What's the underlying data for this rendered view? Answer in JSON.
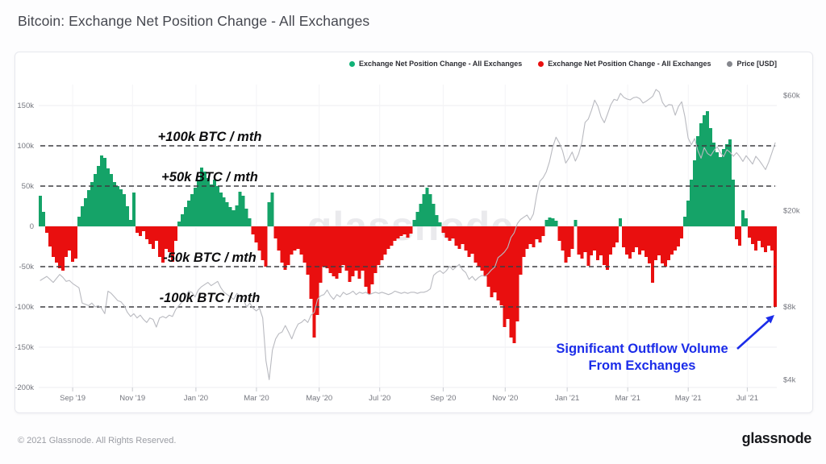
{
  "header": {
    "title": "Bitcoin: Exchange Net Position Change - All Exchanges"
  },
  "legend": {
    "items": [
      {
        "label": "Exchange Net Position Change - All Exchanges",
        "color": "#10b277"
      },
      {
        "label": "Exchange Net Position Change - All Exchanges",
        "color": "#e90f0f"
      },
      {
        "label": "Price [USD]",
        "color": "#85878d"
      }
    ]
  },
  "watermark": "glassnode",
  "footer": {
    "copyright": "© 2021 Glassnode. All Rights Reserved.",
    "logo_text": "glassnode"
  },
  "annotations": {
    "threshold_lines": [
      {
        "label": "+100k BTC / mth",
        "value_k": 100
      },
      {
        "label": "+50k BTC / mth",
        "value_k": 50
      },
      {
        "label": "-50k BTC / mth",
        "value_k": -50
      },
      {
        "label": "-100k BTC / mth",
        "value_k": -100
      }
    ],
    "callout": {
      "line1": "Significant Outflow Volume",
      "line2": "From Exchanges",
      "color": "#1b2ce9"
    }
  },
  "chart_data": {
    "type": "bar",
    "title": "Bitcoin: Exchange Net Position Change - All Exchanges",
    "x_axis": {
      "ticks": [
        "Sep '19",
        "Nov '19",
        "Jan '20",
        "Mar '20",
        "May '20",
        "Jul '20",
        "Sep '20",
        "Nov '20",
        "Jan '21",
        "Mar '21",
        "May '21",
        "Jul '21"
      ],
      "tick_positions": [
        0.046,
        0.127,
        0.213,
        0.295,
        0.38,
        0.462,
        0.548,
        0.632,
        0.716,
        0.798,
        0.88,
        0.96
      ],
      "domain": "Aug 2019 - Aug 2021, uniform time samples"
    },
    "left_axis": {
      "unit": "BTC per month (thousands)",
      "ticks": [
        "150k",
        "100k",
        "50k",
        "0",
        "-50k",
        "-100k",
        "-150k",
        "-200k"
      ],
      "tick_values_k": [
        150,
        100,
        50,
        0,
        -50,
        -100,
        -150,
        -200
      ],
      "range_k": [
        -200,
        175
      ],
      "grid": true
    },
    "right_axis": {
      "label": "Price [USD]",
      "scale": "log",
      "ticks": [
        "$60k",
        "$20k",
        "$8k",
        "$4k"
      ],
      "tick_values_kusd": [
        60,
        20,
        8,
        4
      ]
    },
    "series": [
      {
        "name": "Exchange Net Position Change - All Exchanges",
        "type": "bar",
        "unit": "k BTC / month",
        "color_positive": "#15a368",
        "color_negative": "#e90f0f",
        "values_k": [
          38,
          18,
          -8,
          -25,
          -38,
          -45,
          -52,
          -55,
          -38,
          -30,
          -44,
          -40,
          12,
          25,
          35,
          45,
          55,
          65,
          75,
          88,
          85,
          72,
          65,
          55,
          50,
          46,
          40,
          25,
          8,
          42,
          -8,
          -12,
          -6,
          -16,
          -22,
          -28,
          -18,
          -38,
          -45,
          -28,
          -32,
          -44,
          -18,
          6,
          15,
          24,
          32,
          40,
          48,
          58,
          73,
          68,
          60,
          52,
          58,
          50,
          42,
          36,
          30,
          24,
          20,
          26,
          43,
          38,
          22,
          10,
          -10,
          -20,
          -30,
          -42,
          -50,
          30,
          42,
          -15,
          -30,
          -45,
          -54,
          -48,
          -35,
          -30,
          -28,
          -35,
          -45,
          -60,
          -90,
          -138,
          -110,
          -70,
          -50,
          -52,
          -58,
          -62,
          -65,
          -58,
          -48,
          -55,
          -69,
          -62,
          -55,
          -65,
          -55,
          -75,
          -84,
          -72,
          -58,
          -48,
          -42,
          -35,
          -28,
          -24,
          -18,
          -15,
          -12,
          -10,
          -14,
          -9,
          8,
          18,
          28,
          40,
          48,
          40,
          28,
          14,
          5,
          -8,
          -14,
          -18,
          -15,
          -24,
          -28,
          -22,
          -30,
          -38,
          -34,
          -45,
          -50,
          -55,
          -62,
          -75,
          -88,
          -82,
          -92,
          -98,
          -125,
          -115,
          -138,
          -145,
          -118,
          -60,
          -38,
          -28,
          -22,
          -26,
          -16,
          -20,
          -12,
          8,
          11,
          10,
          7,
          -18,
          -30,
          -45,
          -38,
          -28,
          8,
          -35,
          -40,
          -32,
          -49,
          -36,
          -30,
          -42,
          -36,
          -48,
          -54,
          -35,
          -26,
          -20,
          10,
          -26,
          -35,
          -40,
          -32,
          -26,
          -35,
          -30,
          -38,
          -46,
          -70,
          -42,
          -36,
          -46,
          -50,
          -42,
          -35,
          -30,
          -25,
          -15,
          12,
          32,
          58,
          82,
          112,
          128,
          138,
          143,
          122,
          104,
          92,
          86,
          96,
          102,
          108,
          58,
          -16,
          -24,
          20,
          10,
          -14,
          -22,
          -30,
          -18,
          -26,
          -32,
          -24,
          -30,
          -100
        ]
      },
      {
        "name": "Price [USD]",
        "type": "line",
        "unit": "k USD",
        "color": "#b9bac0",
        "values_kusd": [
          10.3,
          10.5,
          10.7,
          10.4,
          10.1,
          10.5,
          10.9,
          10.6,
          10.2,
          10.3,
          10.0,
          9.8,
          9.6,
          8.3,
          8.2,
          8.1,
          8.3,
          8.0,
          8.1,
          7.9,
          7.5,
          9.3,
          9.1,
          8.8,
          8.5,
          8.4,
          8.1,
          7.6,
          7.3,
          7.5,
          7.2,
          7.4,
          7.1,
          6.9,
          7.2,
          7.1,
          6.6,
          7.2,
          7.3,
          7.2,
          7.4,
          7.3,
          7.8,
          8.1,
          8.4,
          8.7,
          9.3,
          9.2,
          8.8,
          9.4,
          9.7,
          9.9,
          10.1,
          9.8,
          10.0,
          10.2,
          9.6,
          9.2,
          9.0,
          8.8,
          8.6,
          9.1,
          8.9,
          8.6,
          8.0,
          8.3,
          7.9,
          7.7,
          7.9,
          7.2,
          4.8,
          4.0,
          5.3,
          5.9,
          6.2,
          6.3,
          6.7,
          6.3,
          5.9,
          6.4,
          6.8,
          6.9,
          7.1,
          6.9,
          7.4,
          7.6,
          8.6,
          8.9,
          9.0,
          9.4,
          8.9,
          8.6,
          9.0,
          8.8,
          9.2,
          9.0,
          9.1,
          9.3,
          9.0,
          9.2,
          9.1,
          9.2,
          9.0,
          9.1,
          9.2,
          9.1,
          9.2,
          9.1,
          9.0,
          9.1,
          9.3,
          9.2,
          9.1,
          9.2,
          9.1,
          9.2,
          9.2,
          9.1,
          9.2,
          9.2,
          9.3,
          9.5,
          10.8,
          11.1,
          11.3,
          11.0,
          11.3,
          11.8,
          11.4,
          11.7,
          12.0,
          11.4,
          11.1,
          10.4,
          10.7,
          10.3,
          10.6,
          10.8,
          10.7,
          11.0,
          11.4,
          11.7,
          12.8,
          13.1,
          13.5,
          14.1,
          15.5,
          16.2,
          17.7,
          18.4,
          18.8,
          19.2,
          18.3,
          19.4,
          23.2,
          26.5,
          27.4,
          29.0,
          32.0,
          36.8,
          40.3,
          38.2,
          35.5,
          31.5,
          33.0,
          35.0,
          32.1,
          34.3,
          38.3,
          46.4,
          47.9,
          52.1,
          57.4,
          54.2,
          48.9,
          46.3,
          50.3,
          54.9,
          57.8,
          57.2,
          61.2,
          59.0,
          58.0,
          57.5,
          58.7,
          59.1,
          58.2,
          55.8,
          56.8,
          58.1,
          59.5,
          63.5,
          62.0,
          56.2,
          53.8,
          55.0,
          54.8,
          49.7,
          54.0,
          56.5,
          49.0,
          40.0,
          37.5,
          39.8,
          35.5,
          33.0,
          36.5,
          34.5,
          33.8,
          35.5,
          36.8,
          34.8,
          33.5,
          35.8,
          34.9,
          33.6,
          34.8,
          33.5,
          32.0,
          33.8,
          32.5,
          31.2,
          33.6,
          32.4,
          31.0,
          29.6,
          31.8,
          34.8,
          38.2
        ]
      }
    ],
    "style": {
      "dashed_line_color": "#3d3d40",
      "grid_color": "#ededf1",
      "axis_text_color": "#75777f",
      "watermark_color": "#dddde2"
    }
  }
}
